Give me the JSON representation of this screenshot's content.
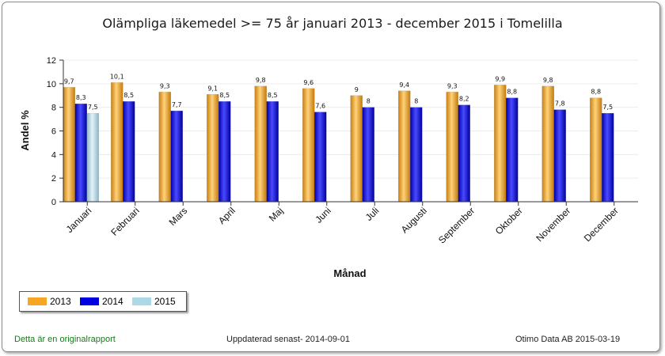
{
  "chart_data": {
    "type": "bar",
    "title": "Olämpliga läkemedel >= 75 år januari 2013 - december 2015 i Tomelilla",
    "xlabel": "Månad",
    "ylabel": "Andel %",
    "ylim": [
      0,
      12
    ],
    "yticks": [
      "0",
      "2",
      "4",
      "6",
      "8",
      "10",
      "12"
    ],
    "categories": [
      "Januari",
      "Februari",
      "Mars",
      "April",
      "Maj",
      "Juni",
      "Juli",
      "Augusti",
      "September",
      "Oktober",
      "November",
      "December"
    ],
    "series": [
      {
        "name": "2013",
        "color": "#f5a623",
        "values": [
          9.7,
          10.1,
          9.3,
          9.1,
          9.8,
          9.6,
          9,
          9.4,
          9.3,
          9.9,
          9.8,
          8.8
        ],
        "labels": [
          "9,7",
          "10,1",
          "9,3",
          "9,1",
          "9,8",
          "9,6",
          "9",
          "9,4",
          "9,3",
          "9,9",
          "9,8",
          "8,8"
        ]
      },
      {
        "name": "2014",
        "color": "#0000e0",
        "values": [
          8.3,
          8.5,
          7.7,
          8.5,
          8.5,
          7.6,
          8,
          8,
          8.2,
          8.8,
          7.8,
          7.5
        ],
        "labels": [
          "8,3",
          "8,5",
          "7,7",
          "8,5",
          "8,5",
          "7,6",
          "8",
          "8",
          "8,2",
          "8,8",
          "7,8",
          "7,5"
        ]
      },
      {
        "name": "2015",
        "color": "#add8e6",
        "values": [
          7.5,
          null,
          null,
          null,
          null,
          null,
          null,
          null,
          null,
          null,
          null,
          null
        ],
        "labels": [
          "7,5",
          "",
          "",
          "",
          "",
          "",
          "",
          "",
          "",
          "",
          "",
          ""
        ]
      }
    ],
    "legend": "bottom-left",
    "grid": true
  },
  "footer": {
    "left": "Detta är en originalrapport",
    "center": "Uppdaterad senast- 2014-09-01",
    "right": "Otimo Data AB 2015-03-19"
  }
}
